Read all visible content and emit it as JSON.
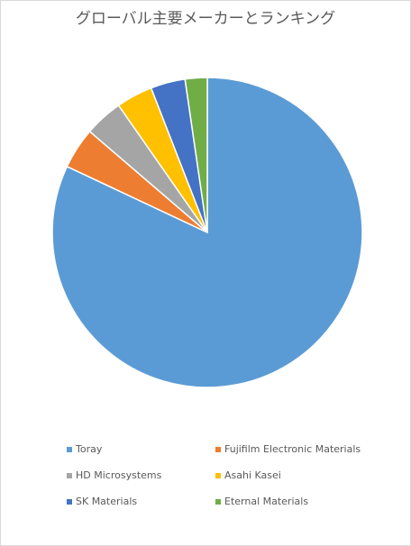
{
  "chart_data": {
    "type": "pie",
    "title": "グローバル主要メーカーとランキング",
    "categories": [
      "Toray",
      "Fujifilm Electronic Materials",
      "HD Microsystems",
      "Asahi Kasei",
      "SK Materials",
      "Eternal Materials"
    ],
    "values": [
      82,
      4.3,
      4,
      3.8,
      3.6,
      2.3
    ],
    "colors": [
      "#5b9bd5",
      "#ed7d31",
      "#a5a5a5",
      "#ffc000",
      "#4472c4",
      "#70ad47"
    ],
    "legend": "bottom"
  }
}
